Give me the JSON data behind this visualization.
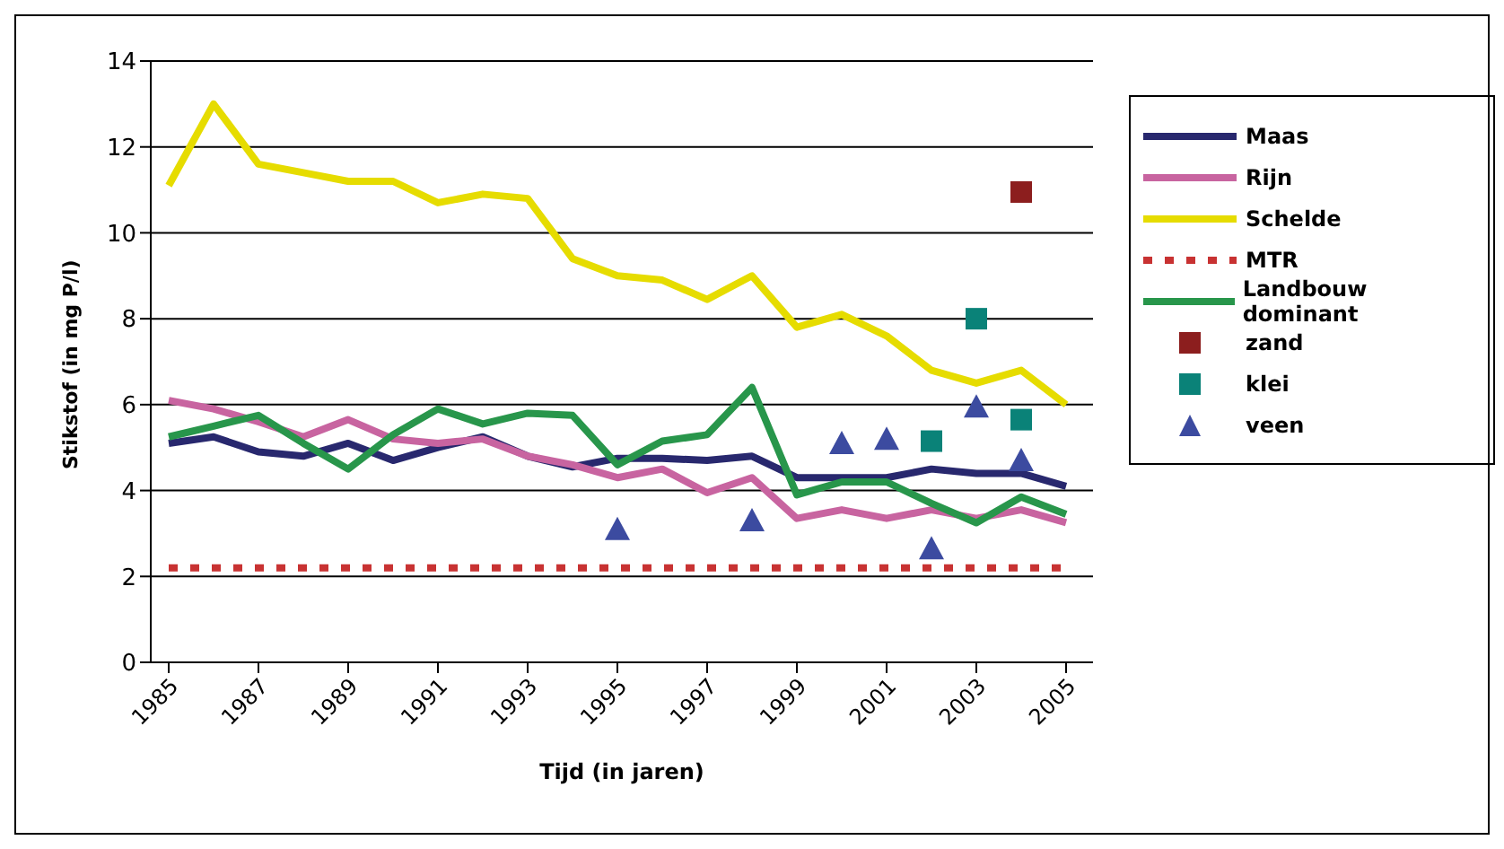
{
  "chart_data": {
    "type": "line",
    "xlabel": "Tijd  (in jaren)",
    "ylabel": "Stikstof (in mg P/l)",
    "x": [
      1985,
      1986,
      1987,
      1988,
      1989,
      1990,
      1991,
      1992,
      1993,
      1994,
      1995,
      1996,
      1997,
      1998,
      1999,
      2000,
      2001,
      2002,
      2003,
      2004,
      2005
    ],
    "xlim": [
      1984.6,
      2005.6
    ],
    "xticks": [
      1985,
      1987,
      1989,
      1991,
      1993,
      1995,
      1997,
      1999,
      2001,
      2003,
      2005
    ],
    "ylim": [
      0,
      14
    ],
    "yticks": [
      0,
      2,
      4,
      6,
      8,
      10,
      12,
      14
    ],
    "grid": "y",
    "legend": "right",
    "marker": "none",
    "series": [
      {
        "name": "Maas",
        "color": "#28286e",
        "values": [
          5.1,
          5.25,
          4.9,
          4.8,
          5.1,
          4.7,
          5.0,
          5.25,
          4.8,
          4.55,
          4.75,
          4.75,
          4.7,
          4.8,
          4.3,
          4.3,
          4.3,
          4.5,
          4.4,
          4.4,
          4.1
        ]
      },
      {
        "name": "Rijn",
        "color": "#c864a0",
        "values": [
          6.1,
          5.9,
          5.6,
          5.25,
          5.65,
          5.2,
          5.1,
          5.2,
          4.8,
          4.6,
          4.3,
          4.5,
          3.95,
          4.3,
          3.35,
          3.55,
          3.35,
          3.55,
          3.35,
          3.55,
          3.25
        ]
      },
      {
        "name": "Schelde",
        "color": "#e6dc00",
        "values": [
          11.1,
          13.0,
          11.6,
          11.4,
          11.2,
          11.2,
          10.7,
          10.9,
          10.8,
          9.4,
          9.0,
          8.9,
          8.45,
          9.0,
          7.8,
          8.1,
          7.6,
          6.8,
          6.5,
          6.8,
          6.0
        ]
      },
      {
        "name": "MTR",
        "color": "#c83232",
        "line_style": "dashed",
        "values": [
          2.2,
          2.2,
          2.2,
          2.2,
          2.2,
          2.2,
          2.2,
          2.2,
          2.2,
          2.2,
          2.2,
          2.2,
          2.2,
          2.2,
          2.2,
          2.2,
          2.2,
          2.2,
          2.2,
          2.2,
          2.2
        ]
      },
      {
        "name": "Landbouw dominant",
        "color": "#28964b",
        "values": [
          5.25,
          5.5,
          5.75,
          5.1,
          4.5,
          5.3,
          5.9,
          5.55,
          5.8,
          5.75,
          4.6,
          5.15,
          5.3,
          6.4,
          3.9,
          4.2,
          4.2,
          3.7,
          3.25,
          3.85,
          3.45
        ]
      },
      {
        "name": "zand",
        "type": "scatter",
        "marker": "square",
        "color": "#8c1e1e",
        "x": [
          2004
        ],
        "values": [
          10.95
        ]
      },
      {
        "name": "klei",
        "type": "scatter",
        "marker": "square",
        "color": "#0a8278",
        "x": [
          2002,
          2003,
          2004
        ],
        "values": [
          5.15,
          8.0,
          5.65
        ]
      },
      {
        "name": "veen",
        "type": "scatter",
        "marker": "triangle",
        "color": "#3c4ba0",
        "x": [
          1995,
          1998,
          2000,
          2001,
          2002,
          2003,
          2004
        ],
        "values": [
          3.1,
          3.3,
          5.1,
          5.2,
          2.65,
          5.95,
          4.7
        ]
      }
    ]
  }
}
